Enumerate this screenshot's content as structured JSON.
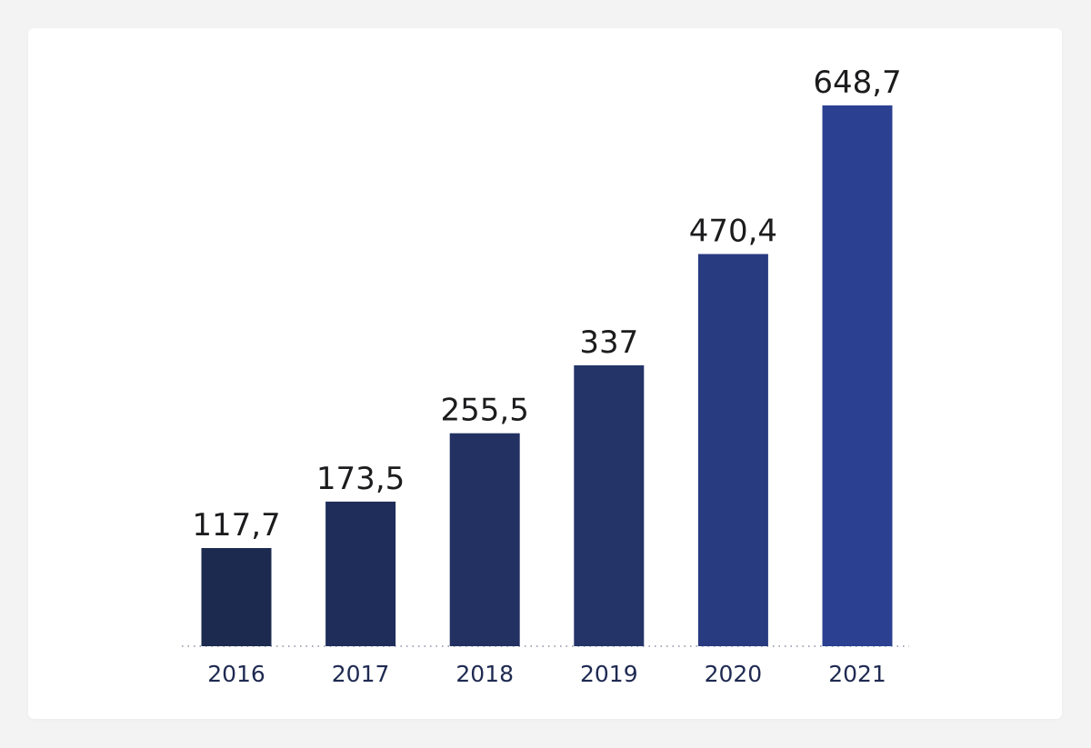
{
  "chart_data": {
    "type": "bar",
    "categories": [
      "2016",
      "2017",
      "2018",
      "2019",
      "2020",
      "2021"
    ],
    "values": [
      117.7,
      173.5,
      255.5,
      337,
      470.4,
      648.7
    ],
    "value_labels": [
      "117,7",
      "173,5",
      "255,5",
      "337",
      "470,4",
      "648,7"
    ],
    "colors": [
      "#1c2a4f",
      "#1f2d5a",
      "#223161",
      "#243469",
      "#283a80",
      "#2b4090"
    ],
    "ylim": [
      0,
      648.7
    ],
    "grid": false,
    "baseline_style": "dotted"
  }
}
